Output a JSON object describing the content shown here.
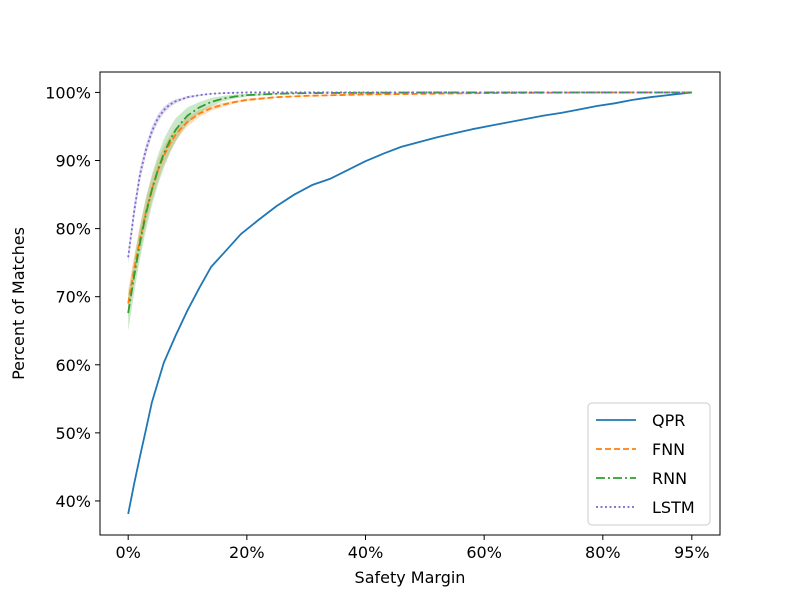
{
  "chart_data": {
    "type": "line",
    "xlabel": "Safety Margin",
    "ylabel": "Percent of Matches",
    "xlim": [
      -4.75,
      99.75
    ],
    "ylim": [
      35,
      103
    ],
    "xticks": [
      0,
      20,
      40,
      60,
      80,
      95
    ],
    "xtick_labels": [
      "0%",
      "20%",
      "40%",
      "60%",
      "80%",
      "95%"
    ],
    "yticks": [
      40,
      50,
      60,
      70,
      80,
      90,
      100
    ],
    "ytick_labels": [
      "40%",
      "50%",
      "60%",
      "70%",
      "80%",
      "90%",
      "100%"
    ],
    "grid": false,
    "legend_position": "lower-right",
    "series": [
      {
        "name": "QPR",
        "color": "#1f77b4",
        "dash": "solid",
        "x": [
          0,
          1,
          2,
          3,
          4,
          6,
          8,
          10,
          12,
          14,
          16,
          19,
          22,
          25,
          28,
          31,
          34,
          37,
          40,
          43,
          46,
          49,
          52,
          55,
          58,
          61,
          64,
          67,
          70,
          73,
          76,
          79,
          82,
          85,
          88,
          91,
          95
        ],
        "y": [
          38.1,
          42.5,
          46.6,
          50.5,
          54.5,
          60.3,
          64.3,
          68.0,
          71.3,
          74.4,
          76.3,
          79.2,
          81.3,
          83.3,
          85.0,
          86.4,
          87.3,
          88.6,
          89.9,
          91.0,
          92.0,
          92.7,
          93.4,
          94.0,
          94.6,
          95.1,
          95.6,
          96.1,
          96.6,
          97.0,
          97.5,
          98.0,
          98.4,
          98.9,
          99.3,
          99.6,
          100.0
        ]
      },
      {
        "name": "FNN",
        "color": "#ff7f0e",
        "dash": "dashed",
        "x": [
          0,
          1,
          2,
          3,
          4,
          5,
          6,
          7,
          8,
          9,
          10,
          12,
          14,
          16,
          18,
          20,
          25,
          30,
          40,
          50,
          60,
          70,
          80,
          90,
          95
        ],
        "y": [
          69.0,
          74.0,
          78.5,
          82.5,
          85.8,
          88.5,
          90.7,
          92.4,
          93.8,
          94.8,
          95.7,
          96.9,
          97.7,
          98.2,
          98.6,
          98.9,
          99.3,
          99.5,
          99.7,
          99.8,
          99.9,
          99.95,
          100.0,
          100.0,
          100.0
        ],
        "band": [
          [
            67.0,
            71.0
          ],
          [
            72.0,
            76.0
          ],
          [
            76.5,
            80.5
          ],
          [
            80.6,
            84.4
          ],
          [
            84.0,
            87.6
          ],
          [
            86.9,
            90.1
          ],
          [
            89.3,
            92.1
          ],
          [
            91.2,
            93.6
          ],
          [
            92.8,
            94.8
          ],
          [
            94.0,
            95.6
          ],
          [
            95.0,
            96.4
          ],
          [
            96.4,
            97.4
          ],
          [
            97.3,
            98.1
          ],
          [
            97.9,
            98.5
          ],
          [
            98.4,
            98.8
          ],
          [
            98.7,
            99.1
          ],
          [
            99.2,
            99.4
          ],
          [
            99.4,
            99.6
          ],
          [
            99.6,
            99.8
          ],
          [
            99.75,
            99.85
          ],
          [
            99.85,
            99.95
          ],
          [
            99.9,
            100.0
          ],
          [
            100.0,
            100.0
          ],
          [
            100.0,
            100.0
          ],
          [
            100.0,
            100.0
          ]
        ]
      },
      {
        "name": "RNN",
        "color": "#2ca02c",
        "dash": "dashdot",
        "x": [
          0,
          1,
          2,
          3,
          4,
          5,
          6,
          7,
          8,
          9,
          10,
          12,
          14,
          16,
          18,
          20,
          25,
          30,
          40,
          50,
          60,
          70,
          80,
          90,
          95
        ],
        "y": [
          67.6,
          73.0,
          78.0,
          82.2,
          85.7,
          88.6,
          91.0,
          92.9,
          94.5,
          95.6,
          96.6,
          97.8,
          98.6,
          99.1,
          99.4,
          99.6,
          99.8,
          99.9,
          99.95,
          100.0,
          100.0,
          100.0,
          100.0,
          100.0,
          100.0
        ],
        "band": [
          [
            65.0,
            70.2
          ],
          [
            70.5,
            75.5
          ],
          [
            75.6,
            80.4
          ],
          [
            79.8,
            84.6
          ],
          [
            83.4,
            88.0
          ],
          [
            86.4,
            90.8
          ],
          [
            88.9,
            93.1
          ],
          [
            91.0,
            94.8
          ],
          [
            92.8,
            96.2
          ],
          [
            94.2,
            97.0
          ],
          [
            95.4,
            97.8
          ],
          [
            97.0,
            98.6
          ],
          [
            98.0,
            99.2
          ],
          [
            98.7,
            99.5
          ],
          [
            99.1,
            99.7
          ],
          [
            99.4,
            99.8
          ],
          [
            99.7,
            99.9
          ],
          [
            99.85,
            99.95
          ],
          [
            99.9,
            100.0
          ],
          [
            100.0,
            100.0
          ],
          [
            100.0,
            100.0
          ],
          [
            100.0,
            100.0
          ],
          [
            100.0,
            100.0
          ],
          [
            100.0,
            100.0
          ],
          [
            100.0,
            100.0
          ]
        ]
      },
      {
        "name": "LSTM",
        "color": "#7b68c9",
        "dash": "dotted",
        "x": [
          0,
          1,
          2,
          3,
          4,
          5,
          6,
          7,
          8,
          9,
          10,
          12,
          14,
          16,
          18,
          20,
          25,
          30,
          40,
          60,
          80,
          95
        ],
        "y": [
          75.8,
          82.5,
          88.0,
          91.6,
          94.3,
          96.2,
          97.4,
          98.2,
          98.7,
          99.0,
          99.3,
          99.6,
          99.8,
          99.9,
          99.95,
          100.0,
          100.0,
          100.0,
          100.0,
          100.0,
          100.0,
          100.0
        ],
        "band": [
          [
            74.8,
            76.8
          ],
          [
            81.4,
            83.6
          ],
          [
            87.0,
            89.0
          ],
          [
            90.8,
            92.4
          ],
          [
            93.6,
            95.0
          ],
          [
            95.6,
            96.8
          ],
          [
            96.9,
            97.9
          ],
          [
            97.8,
            98.6
          ],
          [
            98.4,
            99.0
          ],
          [
            98.8,
            99.2
          ],
          [
            99.1,
            99.5
          ],
          [
            99.5,
            99.7
          ],
          [
            99.75,
            99.85
          ],
          [
            99.85,
            99.95
          ],
          [
            99.9,
            100.0
          ],
          [
            100.0,
            100.0
          ],
          [
            100.0,
            100.0
          ],
          [
            100.0,
            100.0
          ],
          [
            100.0,
            100.0
          ],
          [
            100.0,
            100.0
          ],
          [
            100.0,
            100.0
          ],
          [
            100.0,
            100.0
          ]
        ]
      }
    ]
  }
}
